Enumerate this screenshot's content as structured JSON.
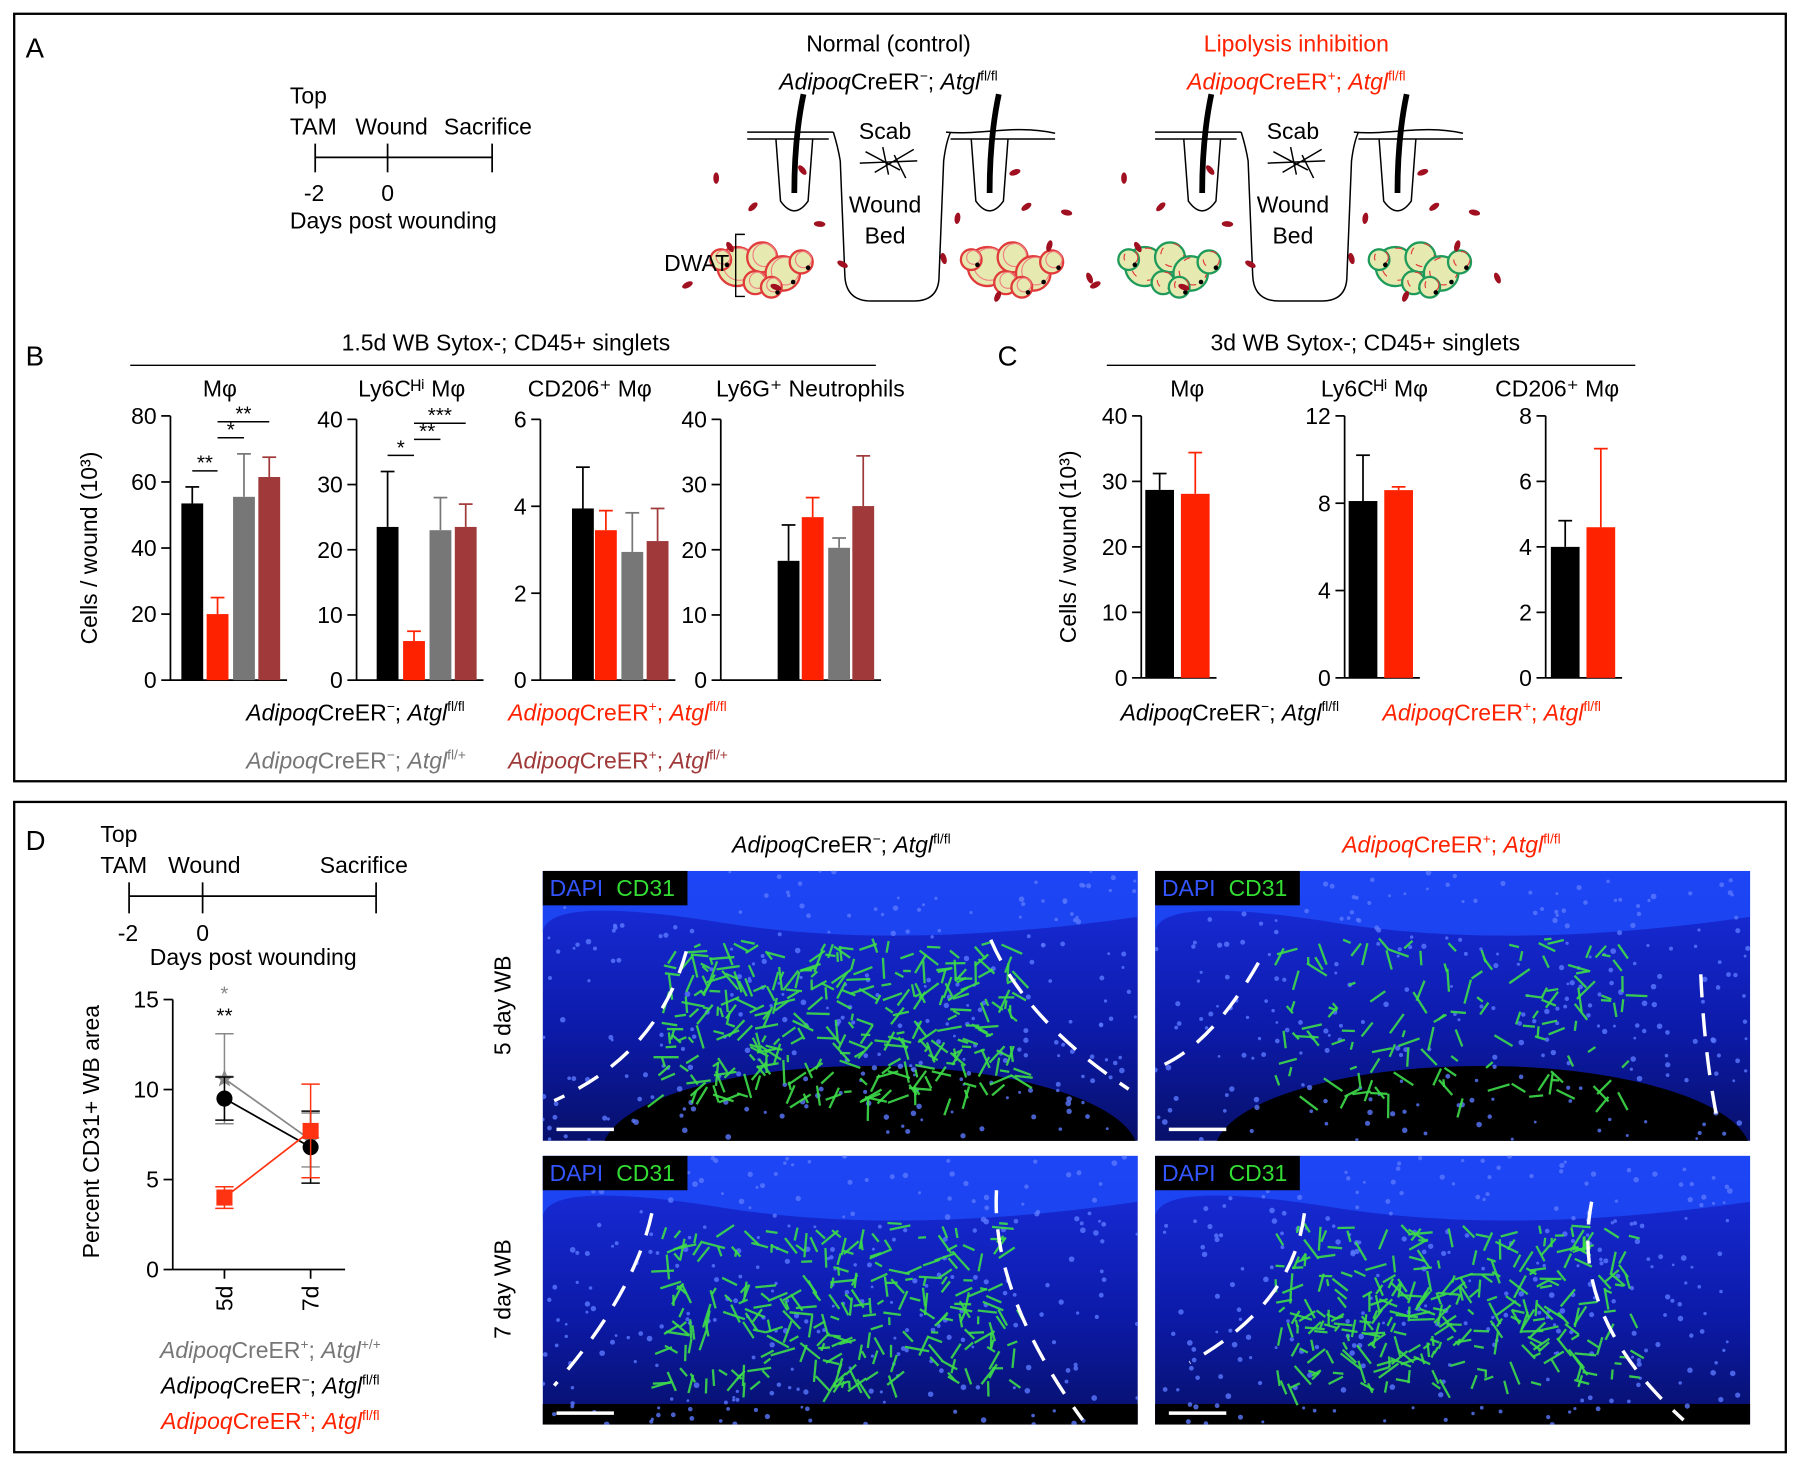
{
  "panel_labels": [
    "A",
    "B",
    "C",
    "D"
  ],
  "genotypes": [
    {
      "parts": [
        "Adipoq",
        "CreER",
        "−",
        "; ",
        "Atgl",
        "fl/fl"
      ],
      "color": "#000000"
    },
    {
      "parts": [
        "Adipoq",
        "CreER",
        "+",
        "; ",
        "Atgl",
        "fl/fl"
      ],
      "color": "#ff2200"
    },
    {
      "parts": [
        "Adipoq",
        "CreER",
        "−",
        "; ",
        "Atgl",
        "fl/+"
      ],
      "color": "#777777"
    },
    {
      "parts": [
        "Adipoq",
        "CreER",
        "+",
        "; ",
        "Atgl",
        "fl/+"
      ],
      "color": "#a03a3a"
    },
    {
      "parts": [
        "Adipoq",
        "CreER",
        "+",
        "; ",
        "Atgl",
        "+/+"
      ],
      "color": "#777777"
    }
  ],
  "panel_a": {
    "timeline": {
      "top": "Top",
      "tam": "TAM",
      "wound": "Wound",
      "sacrifice": "Sacrifice",
      "ticks": [
        "-2",
        "0"
      ],
      "axis_label": "Days post wounding"
    },
    "normal_title": "Normal (control)",
    "inhibition_title": "Lipolysis inhibition",
    "scab": "Scab",
    "wound": "Wound",
    "bed": "Bed",
    "dwat": "DWAT",
    "header_genotypes": [
      0,
      1
    ]
  },
  "panel_b": {
    "title": "1.5d WB Sytox-; CD45+ singlets",
    "ylabel": "Cells / wound (10³)",
    "legend": [
      0,
      1,
      2,
      3
    ]
  },
  "panel_c": {
    "title": "3d WB Sytox-; CD45+ singlets",
    "ylabel": "Cells / wound (10³)",
    "legend": [
      0,
      1
    ]
  },
  "panel_d": {
    "timeline": {
      "top": "Top",
      "tam": "TAM",
      "wound": "Wound",
      "sacrifice": "Sacrifice",
      "ticks": [
        "-2",
        "0"
      ],
      "axis_label": "Days post wounding"
    },
    "legend": [
      4,
      0,
      1
    ],
    "image_columns": [
      0,
      1
    ],
    "rows": [
      "5 day WB",
      "7 day WB"
    ],
    "stain1": "DAPI",
    "stain2": "CD31"
  },
  "chart_data": [
    {
      "type": "bar",
      "title": "Mφ",
      "values": [
        53.5,
        20,
        55.5,
        61.5
      ],
      "errors": [
        5,
        5,
        13,
        6
      ],
      "colors": [
        "#000000",
        "#ff2200",
        "#777777",
        "#a03a3a"
      ],
      "ylim": [
        0,
        80
      ],
      "yticks": [
        0,
        20,
        40,
        60,
        80
      ],
      "significance": [
        {
          "label": "**",
          "pair": [
            0,
            1
          ]
        },
        {
          "label": "*",
          "pair": [
            1,
            2
          ]
        },
        {
          "label": "**",
          "pair": [
            1,
            3
          ]
        }
      ]
    },
    {
      "type": "bar",
      "title": "Ly6Cᴴⁱ Mφ",
      "values": [
        23.5,
        6,
        23,
        23.5
      ],
      "errors": [
        8.5,
        1.5,
        5,
        3.5
      ],
      "colors": [
        "#000000",
        "#ff2200",
        "#777777",
        "#a03a3a"
      ],
      "ylim": [
        0,
        40
      ],
      "yticks": [
        0,
        10,
        20,
        30,
        40
      ],
      "significance": [
        {
          "label": "*",
          "pair": [
            0,
            1
          ]
        },
        {
          "label": "**",
          "pair": [
            1,
            2
          ]
        },
        {
          "label": "***",
          "pair": [
            1,
            3
          ]
        }
      ]
    },
    {
      "type": "bar",
      "title": "CD206⁺ Mφ",
      "values": [
        3.95,
        3.45,
        2.95,
        3.2
      ],
      "errors": [
        0.95,
        0.45,
        0.9,
        0.75
      ],
      "colors": [
        "#000000",
        "#ff2200",
        "#777777",
        "#a03a3a"
      ],
      "ylim": [
        0,
        6
      ],
      "yticks": [
        0,
        2,
        4,
        6
      ]
    },
    {
      "type": "bar",
      "title": "Ly6G⁺ Neutrophils",
      "values": [
        18.3,
        25,
        20.3,
        26.7
      ],
      "errors": [
        5.5,
        3,
        1.5,
        7.7
      ],
      "colors": [
        "#000000",
        "#ff2200",
        "#777777",
        "#a03a3a"
      ],
      "ylim": [
        0,
        40
      ],
      "yticks": [
        0,
        10,
        20,
        30,
        40
      ]
    },
    {
      "type": "bar",
      "title": "Mφ",
      "values": [
        28.7,
        28.1
      ],
      "errors": [
        2.5,
        6.3
      ],
      "colors": [
        "#000000",
        "#ff2200"
      ],
      "ylim": [
        0,
        40
      ],
      "yticks": [
        0,
        10,
        20,
        30,
        40
      ]
    },
    {
      "type": "bar",
      "title": "Ly6Cᴴⁱ Mφ",
      "values": [
        8.1,
        8.6
      ],
      "errors": [
        2.1,
        0.15
      ],
      "colors": [
        "#000000",
        "#ff2200"
      ],
      "ylim": [
        0,
        12
      ],
      "yticks": [
        0,
        4,
        8,
        12
      ]
    },
    {
      "type": "bar",
      "title": "CD206⁺ Mφ",
      "values": [
        4,
        4.6
      ],
      "errors": [
        0.8,
        2.4
      ],
      "colors": [
        "#000000",
        "#ff2200"
      ],
      "ylim": [
        0,
        8
      ],
      "yticks": [
        0,
        2,
        4,
        6,
        8
      ]
    },
    {
      "type": "line",
      "ylabel": "Percent CD31+ WB area",
      "categories": [
        "5d",
        "7d"
      ],
      "ylim": [
        0,
        15
      ],
      "yticks": [
        0,
        5,
        10,
        15
      ],
      "series": [
        {
          "genotype": 4,
          "color": "#888888",
          "marker": "star",
          "values": [
            10.6,
            7.2
          ],
          "errors": [
            2.5,
            1.5
          ]
        },
        {
          "genotype": 0,
          "color": "#000000",
          "marker": "circle",
          "values": [
            9.5,
            6.8
          ],
          "errors": [
            1.2,
            2.0
          ]
        },
        {
          "genotype": 1,
          "color": "#ff3311",
          "marker": "square",
          "values": [
            4.0,
            7.7
          ],
          "errors": [
            0.6,
            2.6
          ]
        }
      ],
      "annotations": [
        {
          "text": "*",
          "series": 0,
          "index": 0
        },
        {
          "text": "**",
          "series": 1,
          "index": 0
        }
      ]
    }
  ]
}
